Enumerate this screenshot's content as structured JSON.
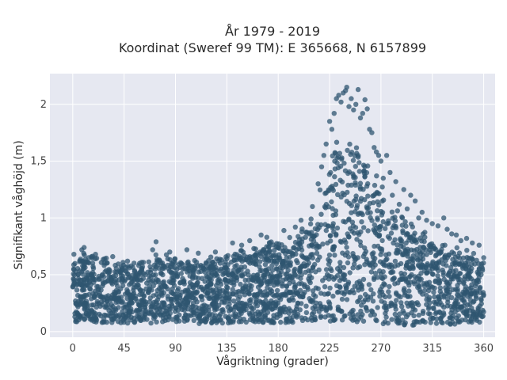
{
  "chart_data": {
    "type": "scatter",
    "title": "År 1979 - 2019",
    "subtitle": "Koordinat (Sweref 99 TM): E 365668, N 6157899",
    "xlabel": "Vågriktning (grader)",
    "ylabel": "Signifikant våghöjd (m)",
    "xlim": [
      -20,
      370
    ],
    "ylim": [
      -0.05,
      2.27
    ],
    "x_ticks": [
      0,
      45,
      90,
      135,
      180,
      225,
      270,
      315,
      360
    ],
    "x_tick_labels": [
      "0",
      "45",
      "90",
      "135",
      "180",
      "225",
      "270",
      "315",
      "360"
    ],
    "y_ticks": [
      0,
      0.5,
      1,
      1.5,
      2
    ],
    "y_tick_labels": [
      "0",
      "0,5",
      "1",
      "1,5",
      "2"
    ],
    "grid": true,
    "marker_color": "#2f5670",
    "background_color": "#e6e8f1",
    "series": [
      {
        "x": [
          0,
          15,
          30,
          45,
          60,
          75,
          90,
          105,
          120,
          135,
          150,
          165,
          180,
          195,
          210,
          225,
          240,
          255,
          270,
          285,
          300,
          315,
          330,
          345,
          360
        ],
        "y_min": [
          0.08,
          0.08,
          0.08,
          0.07,
          0.07,
          0.07,
          0.07,
          0.07,
          0.07,
          0.07,
          0.07,
          0.07,
          0.07,
          0.08,
          0.08,
          0.08,
          0.08,
          0.08,
          0.07,
          0.06,
          0.05,
          0.06,
          0.06,
          0.07,
          0.08
        ],
        "y_max": [
          0.68,
          0.72,
          0.66,
          0.63,
          0.65,
          0.7,
          0.68,
          0.67,
          0.66,
          0.72,
          0.75,
          0.8,
          0.84,
          0.9,
          1.05,
          1.6,
          1.8,
          1.72,
          1.35,
          1.1,
          0.95,
          0.88,
          0.8,
          0.72,
          0.65
        ]
      }
    ],
    "outliers": [
      {
        "x": 1,
        "y": 0.68
      },
      {
        "x": 8,
        "y": 0.72
      },
      {
        "x": 10,
        "y": 0.74
      },
      {
        "x": 20,
        "y": 0.68
      },
      {
        "x": 35,
        "y": 0.66
      },
      {
        "x": 48,
        "y": 0.62
      },
      {
        "x": 70,
        "y": 0.72
      },
      {
        "x": 73,
        "y": 0.79
      },
      {
        "x": 85,
        "y": 0.7
      },
      {
        "x": 100,
        "y": 0.72
      },
      {
        "x": 110,
        "y": 0.69
      },
      {
        "x": 125,
        "y": 0.7
      },
      {
        "x": 140,
        "y": 0.78
      },
      {
        "x": 148,
        "y": 0.76
      },
      {
        "x": 155,
        "y": 0.8
      },
      {
        "x": 165,
        "y": 0.85
      },
      {
        "x": 170,
        "y": 0.83
      },
      {
        "x": 185,
        "y": 0.89
      },
      {
        "x": 195,
        "y": 0.92
      },
      {
        "x": 200,
        "y": 0.98
      },
      {
        "x": 210,
        "y": 1.1
      },
      {
        "x": 215,
        "y": 1.3
      },
      {
        "x": 218,
        "y": 1.45
      },
      {
        "x": 220,
        "y": 1.55
      },
      {
        "x": 222,
        "y": 1.65
      },
      {
        "x": 225,
        "y": 1.85
      },
      {
        "x": 227,
        "y": 1.78
      },
      {
        "x": 229,
        "y": 1.92
      },
      {
        "x": 231,
        "y": 2.05
      },
      {
        "x": 233,
        "y": 2.08
      },
      {
        "x": 235,
        "y": 2.02
      },
      {
        "x": 237,
        "y": 2.1
      },
      {
        "x": 239,
        "y": 2.12
      },
      {
        "x": 240,
        "y": 2.15
      },
      {
        "x": 242,
        "y": 1.98
      },
      {
        "x": 244,
        "y": 2.05
      },
      {
        "x": 246,
        "y": 1.95
      },
      {
        "x": 248,
        "y": 2.0
      },
      {
        "x": 250,
        "y": 2.13
      },
      {
        "x": 252,
        "y": 1.88
      },
      {
        "x": 254,
        "y": 1.92
      },
      {
        "x": 256,
        "y": 2.04
      },
      {
        "x": 258,
        "y": 1.96
      },
      {
        "x": 260,
        "y": 1.78
      },
      {
        "x": 262,
        "y": 1.75
      },
      {
        "x": 264,
        "y": 1.62
      },
      {
        "x": 266,
        "y": 1.58
      },
      {
        "x": 268,
        "y": 1.55
      },
      {
        "x": 270,
        "y": 1.5
      },
      {
        "x": 272,
        "y": 1.35
      },
      {
        "x": 275,
        "y": 1.55
      },
      {
        "x": 278,
        "y": 1.4
      },
      {
        "x": 280,
        "y": 1.2
      },
      {
        "x": 283,
        "y": 1.32
      },
      {
        "x": 286,
        "y": 1.12
      },
      {
        "x": 290,
        "y": 1.25
      },
      {
        "x": 293,
        "y": 1.08
      },
      {
        "x": 296,
        "y": 1.2
      },
      {
        "x": 300,
        "y": 1.15
      },
      {
        "x": 303,
        "y": 1.0
      },
      {
        "x": 306,
        "y": 1.05
      },
      {
        "x": 310,
        "y": 0.98
      },
      {
        "x": 315,
        "y": 0.95
      },
      {
        "x": 320,
        "y": 0.93
      },
      {
        "x": 325,
        "y": 1.0
      },
      {
        "x": 328,
        "y": 0.9
      },
      {
        "x": 332,
        "y": 0.86
      },
      {
        "x": 336,
        "y": 0.85
      },
      {
        "x": 340,
        "y": 0.8
      },
      {
        "x": 345,
        "y": 0.82
      },
      {
        "x": 350,
        "y": 0.78
      },
      {
        "x": 356,
        "y": 0.76
      },
      {
        "x": 360,
        "y": 0.65
      }
    ]
  }
}
